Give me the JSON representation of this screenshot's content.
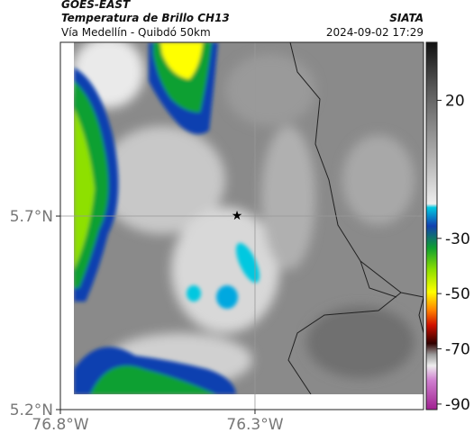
{
  "header": {
    "source": "GOES-EAST",
    "title": "Temperatura de Brillo CH13",
    "subtitle": "Vía Medellín - Quibdó 50km",
    "agency": "SIATA",
    "datetime": "2024-09-02 17:29"
  },
  "map": {
    "xlim": [
      -76.8,
      -75.867
    ],
    "ylim": [
      5.2,
      6.149
    ],
    "grid": true,
    "xticks": [
      {
        "value": -76.8,
        "label": "76.8°W"
      },
      {
        "value": -76.3,
        "label": "76.3°W"
      }
    ],
    "yticks": [
      {
        "value": 5.7,
        "label": "5.7°N"
      },
      {
        "value": 5.2,
        "label": "5.2°N"
      }
    ]
  },
  "colorbar": {
    "range": [
      41,
      -92
    ],
    "ticks": [
      20,
      -30,
      -50,
      -70,
      -90
    ]
  }
}
